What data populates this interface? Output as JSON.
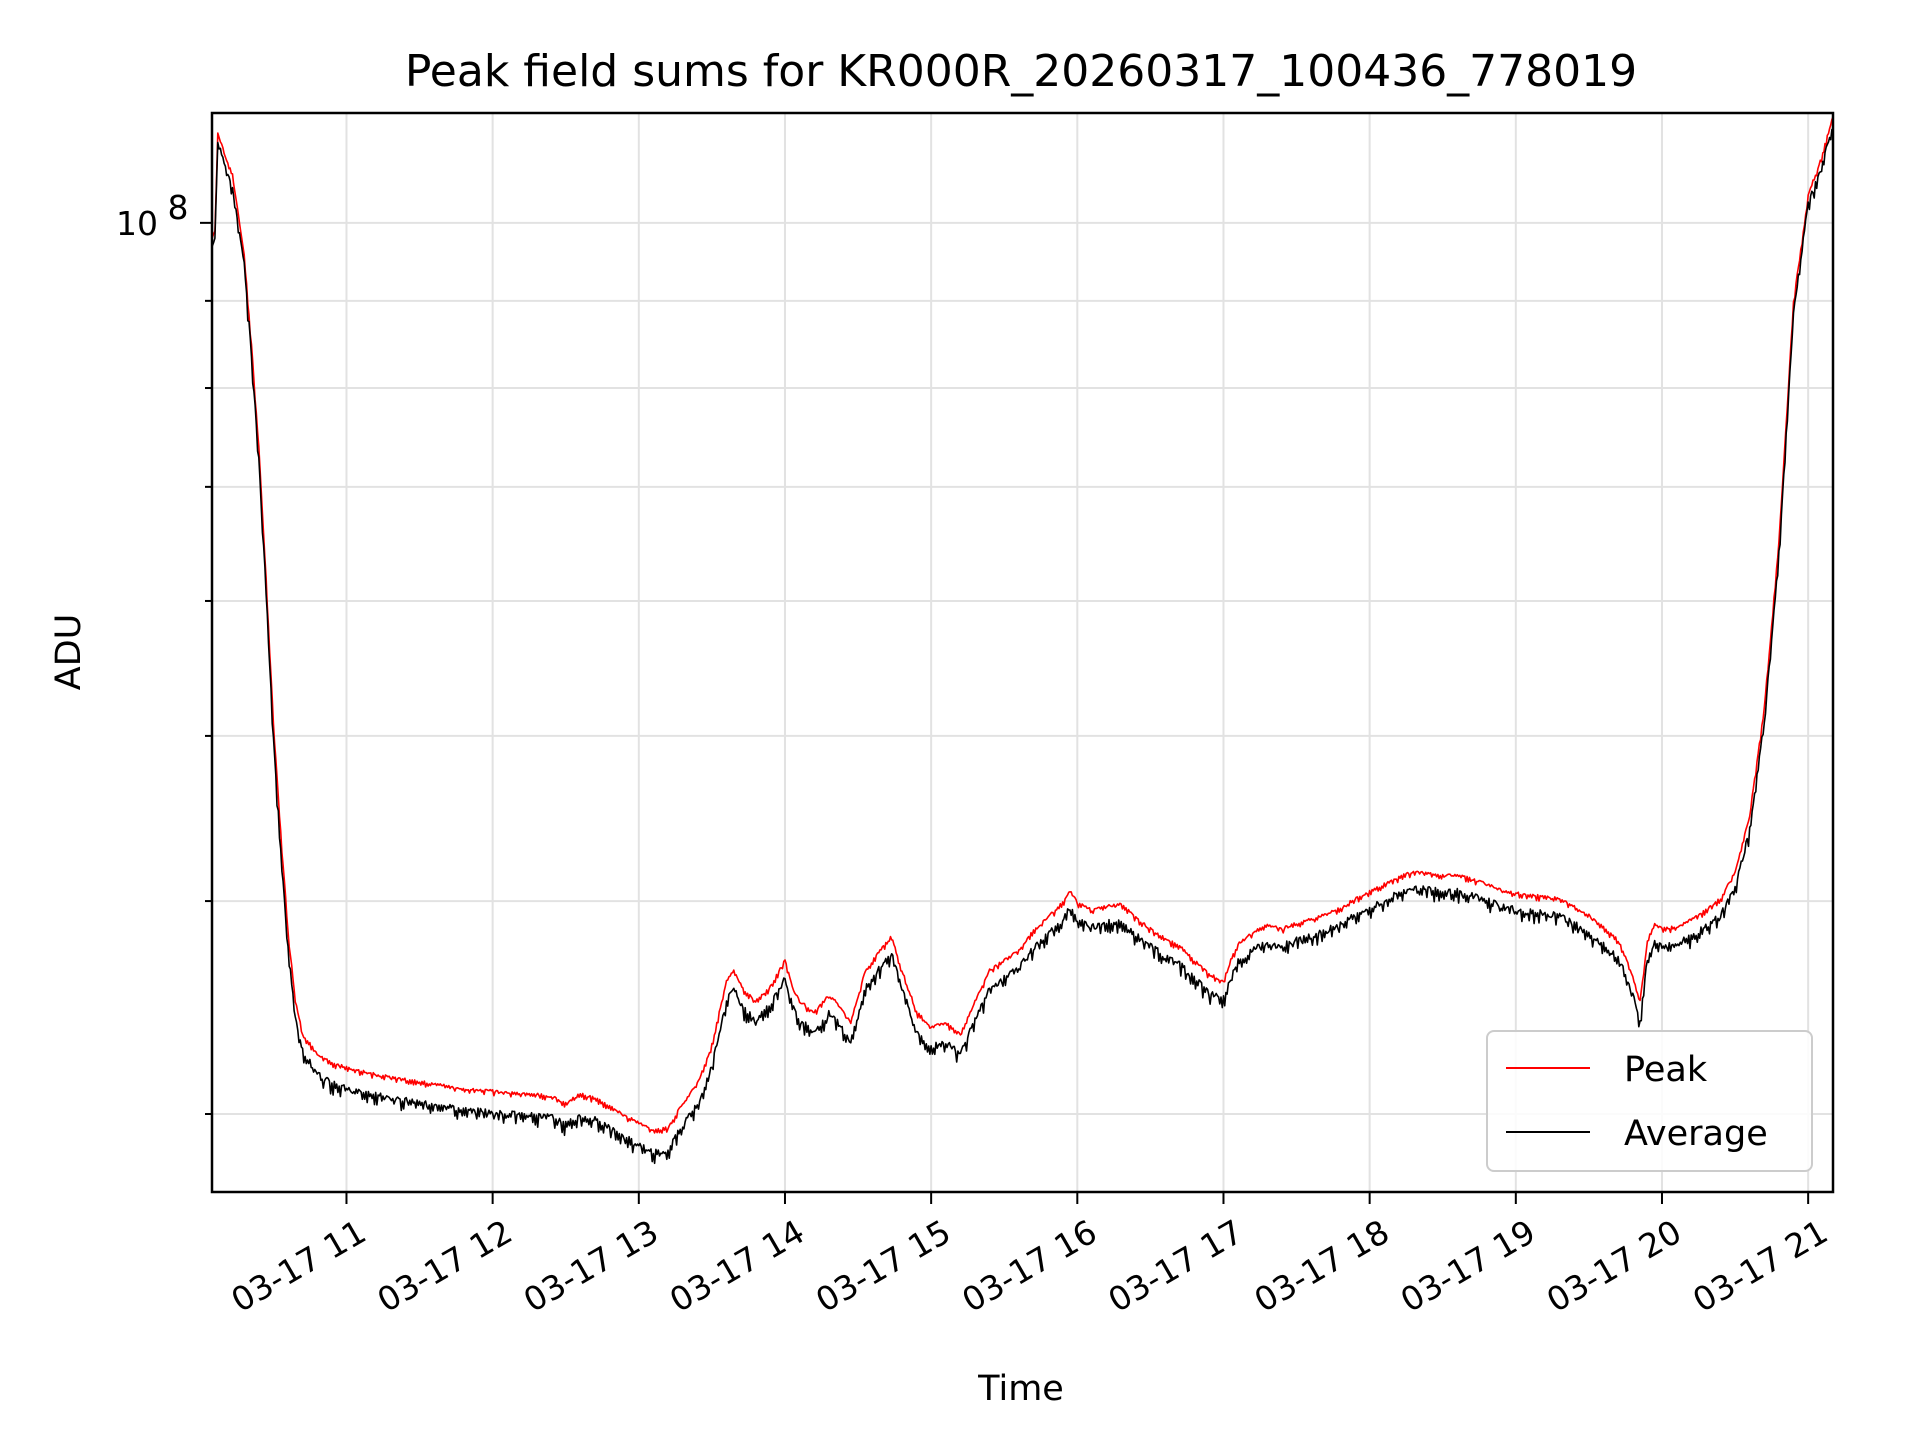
{
  "chart_data": {
    "type": "line",
    "title": "Peak field sums for KR000R_20260317_100436_778019",
    "xlabel": "Time",
    "ylabel": "ADU",
    "yscale": "log",
    "ylim": [
      27000000,
      116000000
    ],
    "xlim_hours": [
      10.08,
      21.17
    ],
    "grid": true,
    "legend_position": "lower right",
    "y_major_ticks": [
      {
        "value": 100000000,
        "mantissa": "10",
        "exponent": "8"
      }
    ],
    "y_minor_ticks": [
      30000000,
      40000000,
      50000000,
      60000000,
      70000000,
      80000000,
      90000000
    ],
    "x_ticks": [
      {
        "hour": 11,
        "label": "03-17 11"
      },
      {
        "hour": 12,
        "label": "03-17 12"
      },
      {
        "hour": 13,
        "label": "03-17 13"
      },
      {
        "hour": 14,
        "label": "03-17 14"
      },
      {
        "hour": 15,
        "label": "03-17 15"
      },
      {
        "hour": 16,
        "label": "03-17 16"
      },
      {
        "hour": 17,
        "label": "03-17 17"
      },
      {
        "hour": 18,
        "label": "03-17 18"
      },
      {
        "hour": 19,
        "label": "03-17 19"
      },
      {
        "hour": 20,
        "label": "03-17 20"
      },
      {
        "hour": 21,
        "label": "03-17 21"
      }
    ],
    "series": [
      {
        "name": "Peak",
        "color": "#ff0000",
        "points": [
          [
            10.08,
            98000000
          ],
          [
            10.1,
            99000000
          ],
          [
            10.12,
            113000000
          ],
          [
            10.18,
            109000000
          ],
          [
            10.22,
            107000000
          ],
          [
            10.3,
            96000000
          ],
          [
            10.35,
            85000000
          ],
          [
            10.4,
            74000000
          ],
          [
            10.45,
            62000000
          ],
          [
            10.5,
            51000000
          ],
          [
            10.55,
            44000000
          ],
          [
            10.6,
            38500000
          ],
          [
            10.65,
            35000000
          ],
          [
            10.7,
            33500000
          ],
          [
            10.8,
            32600000
          ],
          [
            10.9,
            32200000
          ],
          [
            11.0,
            32000000
          ],
          [
            11.2,
            31700000
          ],
          [
            11.4,
            31500000
          ],
          [
            11.6,
            31300000
          ],
          [
            11.8,
            31100000
          ],
          [
            12.0,
            31000000
          ],
          [
            12.2,
            30900000
          ],
          [
            12.4,
            30800000
          ],
          [
            12.5,
            30500000
          ],
          [
            12.6,
            30900000
          ],
          [
            12.7,
            30700000
          ],
          [
            12.8,
            30400000
          ],
          [
            12.9,
            30000000
          ],
          [
            13.0,
            29700000
          ],
          [
            13.1,
            29400000
          ],
          [
            13.2,
            29500000
          ],
          [
            13.3,
            30500000
          ],
          [
            13.4,
            31300000
          ],
          [
            13.5,
            33000000
          ],
          [
            13.6,
            36000000
          ],
          [
            13.65,
            36500000
          ],
          [
            13.72,
            35500000
          ],
          [
            13.8,
            35000000
          ],
          [
            13.9,
            35700000
          ],
          [
            14.0,
            37000000
          ],
          [
            14.05,
            35700000
          ],
          [
            14.1,
            35000000
          ],
          [
            14.2,
            34500000
          ],
          [
            14.3,
            35300000
          ],
          [
            14.35,
            35000000
          ],
          [
            14.45,
            34000000
          ],
          [
            14.55,
            36500000
          ],
          [
            14.65,
            37500000
          ],
          [
            14.73,
            38200000
          ],
          [
            14.8,
            36500000
          ],
          [
            14.9,
            34500000
          ],
          [
            15.0,
            33800000
          ],
          [
            15.1,
            34000000
          ],
          [
            15.2,
            33500000
          ],
          [
            15.3,
            35000000
          ],
          [
            15.4,
            36500000
          ],
          [
            15.5,
            37000000
          ],
          [
            15.6,
            37500000
          ],
          [
            15.7,
            38500000
          ],
          [
            15.8,
            39200000
          ],
          [
            15.9,
            40000000
          ],
          [
            15.95,
            40600000
          ],
          [
            16.0,
            40000000
          ],
          [
            16.1,
            39600000
          ],
          [
            16.2,
            39800000
          ],
          [
            16.3,
            39900000
          ],
          [
            16.4,
            39200000
          ],
          [
            16.5,
            38600000
          ],
          [
            16.6,
            38100000
          ],
          [
            16.7,
            37700000
          ],
          [
            16.8,
            37000000
          ],
          [
            16.9,
            36300000
          ],
          [
            17.0,
            36000000
          ],
          [
            17.05,
            37000000
          ],
          [
            17.1,
            37800000
          ],
          [
            17.2,
            38400000
          ],
          [
            17.3,
            38800000
          ],
          [
            17.4,
            38600000
          ],
          [
            17.5,
            38900000
          ],
          [
            17.6,
            39100000
          ],
          [
            17.7,
            39400000
          ],
          [
            17.8,
            39700000
          ],
          [
            17.9,
            40200000
          ],
          [
            18.0,
            40600000
          ],
          [
            18.1,
            41000000
          ],
          [
            18.2,
            41400000
          ],
          [
            18.3,
            41700000
          ],
          [
            18.4,
            41600000
          ],
          [
            18.5,
            41500000
          ],
          [
            18.6,
            41500000
          ],
          [
            18.7,
            41300000
          ],
          [
            18.8,
            41000000
          ],
          [
            18.9,
            40700000
          ],
          [
            19.0,
            40500000
          ],
          [
            19.1,
            40400000
          ],
          [
            19.2,
            40300000
          ],
          [
            19.3,
            40200000
          ],
          [
            19.4,
            39800000
          ],
          [
            19.5,
            39300000
          ],
          [
            19.6,
            38700000
          ],
          [
            19.7,
            38000000
          ],
          [
            19.75,
            37200000
          ],
          [
            19.8,
            36200000
          ],
          [
            19.85,
            35000000
          ],
          [
            19.9,
            38000000
          ],
          [
            19.95,
            38900000
          ],
          [
            20.0,
            38600000
          ],
          [
            20.1,
            38700000
          ],
          [
            20.2,
            39100000
          ],
          [
            20.3,
            39600000
          ],
          [
            20.4,
            40200000
          ],
          [
            20.5,
            41700000
          ],
          [
            20.6,
            45000000
          ],
          [
            20.7,
            52000000
          ],
          [
            20.8,
            65000000
          ],
          [
            20.9,
            90000000
          ],
          [
            21.0,
            104000000
          ],
          [
            21.1,
            110000000
          ],
          [
            21.17,
            116000000
          ]
        ]
      },
      {
        "name": "Average",
        "color": "#000000",
        "points": [
          [
            10.08,
            97000000
          ],
          [
            10.1,
            98000000
          ],
          [
            10.12,
            112000000
          ],
          [
            10.18,
            108000000
          ],
          [
            10.22,
            105000000
          ],
          [
            10.3,
            95000000
          ],
          [
            10.35,
            84000000
          ],
          [
            10.4,
            73000000
          ],
          [
            10.45,
            61000000
          ],
          [
            10.5,
            50000000
          ],
          [
            10.55,
            43000000
          ],
          [
            10.6,
            37800000
          ],
          [
            10.65,
            34300000
          ],
          [
            10.7,
            32800000
          ],
          [
            10.8,
            31800000
          ],
          [
            10.9,
            31400000
          ],
          [
            11.0,
            31200000
          ],
          [
            11.2,
            30900000
          ],
          [
            11.4,
            30700000
          ],
          [
            11.6,
            30500000
          ],
          [
            11.8,
            30300000
          ],
          [
            12.0,
            30200000
          ],
          [
            12.2,
            30100000
          ],
          [
            12.4,
            30000000
          ],
          [
            12.5,
            29700000
          ],
          [
            12.6,
            30100000
          ],
          [
            12.7,
            29900000
          ],
          [
            12.8,
            29600000
          ],
          [
            12.9,
            29200000
          ],
          [
            13.0,
            28900000
          ],
          [
            13.1,
            28600000
          ],
          [
            13.2,
            28700000
          ],
          [
            13.3,
            29700000
          ],
          [
            13.4,
            30500000
          ],
          [
            13.5,
            32200000
          ],
          [
            13.6,
            35200000
          ],
          [
            13.65,
            35700000
          ],
          [
            13.72,
            34700000
          ],
          [
            13.8,
            34200000
          ],
          [
            13.9,
            34900000
          ],
          [
            14.0,
            36200000
          ],
          [
            14.05,
            34900000
          ],
          [
            14.1,
            34200000
          ],
          [
            14.2,
            33700000
          ],
          [
            14.3,
            34500000
          ],
          [
            14.35,
            34200000
          ],
          [
            14.45,
            33200000
          ],
          [
            14.55,
            35700000
          ],
          [
            14.65,
            36700000
          ],
          [
            14.73,
            37400000
          ],
          [
            14.8,
            35700000
          ],
          [
            14.9,
            33700000
          ],
          [
            15.0,
            33000000
          ],
          [
            15.1,
            33200000
          ],
          [
            15.2,
            32700000
          ],
          [
            15.3,
            34200000
          ],
          [
            15.4,
            35700000
          ],
          [
            15.5,
            36200000
          ],
          [
            15.6,
            36700000
          ],
          [
            15.7,
            37700000
          ],
          [
            15.8,
            38400000
          ],
          [
            15.9,
            39200000
          ],
          [
            15.95,
            39800000
          ],
          [
            16.0,
            39200000
          ],
          [
            16.1,
            38800000
          ],
          [
            16.2,
            39000000
          ],
          [
            16.3,
            39100000
          ],
          [
            16.4,
            38400000
          ],
          [
            16.5,
            37800000
          ],
          [
            16.6,
            37300000
          ],
          [
            16.7,
            36900000
          ],
          [
            16.8,
            36200000
          ],
          [
            16.9,
            35500000
          ],
          [
            17.0,
            35200000
          ],
          [
            17.05,
            36200000
          ],
          [
            17.1,
            37000000
          ],
          [
            17.2,
            37600000
          ],
          [
            17.3,
            38000000
          ],
          [
            17.4,
            37800000
          ],
          [
            17.5,
            38100000
          ],
          [
            17.6,
            38300000
          ],
          [
            17.7,
            38600000
          ],
          [
            17.8,
            38900000
          ],
          [
            17.9,
            39400000
          ],
          [
            18.0,
            39800000
          ],
          [
            18.1,
            40200000
          ],
          [
            18.2,
            40600000
          ],
          [
            18.3,
            40900000
          ],
          [
            18.4,
            40800000
          ],
          [
            18.5,
            40700000
          ],
          [
            18.6,
            40700000
          ],
          [
            18.7,
            40500000
          ],
          [
            18.8,
            40200000
          ],
          [
            18.9,
            39900000
          ],
          [
            19.0,
            39700000
          ],
          [
            19.1,
            39600000
          ],
          [
            19.2,
            39500000
          ],
          [
            19.3,
            39400000
          ],
          [
            19.4,
            39000000
          ],
          [
            19.5,
            38500000
          ],
          [
            19.6,
            37900000
          ],
          [
            19.7,
            37200000
          ],
          [
            19.75,
            36400000
          ],
          [
            19.8,
            35400000
          ],
          [
            19.85,
            34200000
          ],
          [
            19.9,
            37200000
          ],
          [
            19.95,
            38100000
          ],
          [
            20.0,
            37800000
          ],
          [
            20.1,
            37900000
          ],
          [
            20.2,
            38300000
          ],
          [
            20.3,
            38800000
          ],
          [
            20.4,
            39400000
          ],
          [
            20.5,
            40900000
          ],
          [
            20.6,
            44200000
          ],
          [
            20.7,
            51200000
          ],
          [
            20.8,
            64200000
          ],
          [
            20.9,
            89000000
          ],
          [
            21.0,
            103000000
          ],
          [
            21.1,
            109000000
          ],
          [
            21.17,
            115000000
          ]
        ]
      }
    ]
  }
}
